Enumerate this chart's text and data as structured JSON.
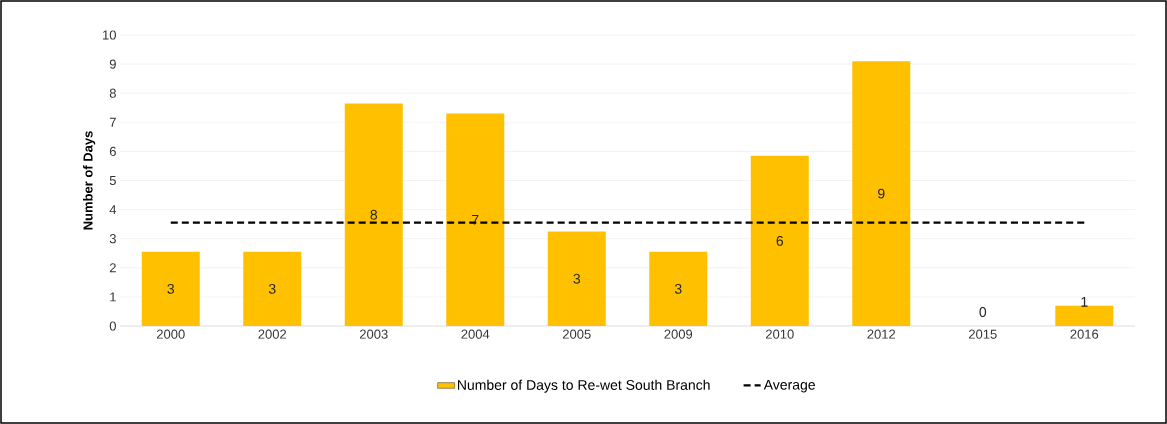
{
  "chart_data": {
    "type": "bar",
    "ylabel": "Number of Days",
    "categories": [
      "2000",
      "2002",
      "2003",
      "2004",
      "2005",
      "2009",
      "2010",
      "2012",
      "2015",
      "2016"
    ],
    "series": [
      {
        "name": "Number of Days to Re-wet South Branch",
        "color": "#ffc000",
        "values": [
          2.55,
          2.55,
          7.65,
          7.3,
          3.25,
          2.55,
          5.85,
          9.1,
          0,
          0.7
        ],
        "value_labels": [
          "3",
          "3",
          "8",
          "7",
          "3",
          "3",
          "6",
          "9",
          "0",
          "1"
        ]
      },
      {
        "name": "Average",
        "type": "line",
        "color": "#000000",
        "line_style": "dashed",
        "values": [
          3.55,
          3.55,
          3.55,
          3.55,
          3.55,
          3.55,
          3.55,
          3.55,
          3.55,
          3.55
        ]
      }
    ],
    "ylim": [
      0,
      10
    ],
    "yticks": [
      0,
      1,
      2,
      3,
      4,
      5,
      6,
      7,
      8,
      9,
      10
    ],
    "grid": "y",
    "legend": "bottom"
  }
}
